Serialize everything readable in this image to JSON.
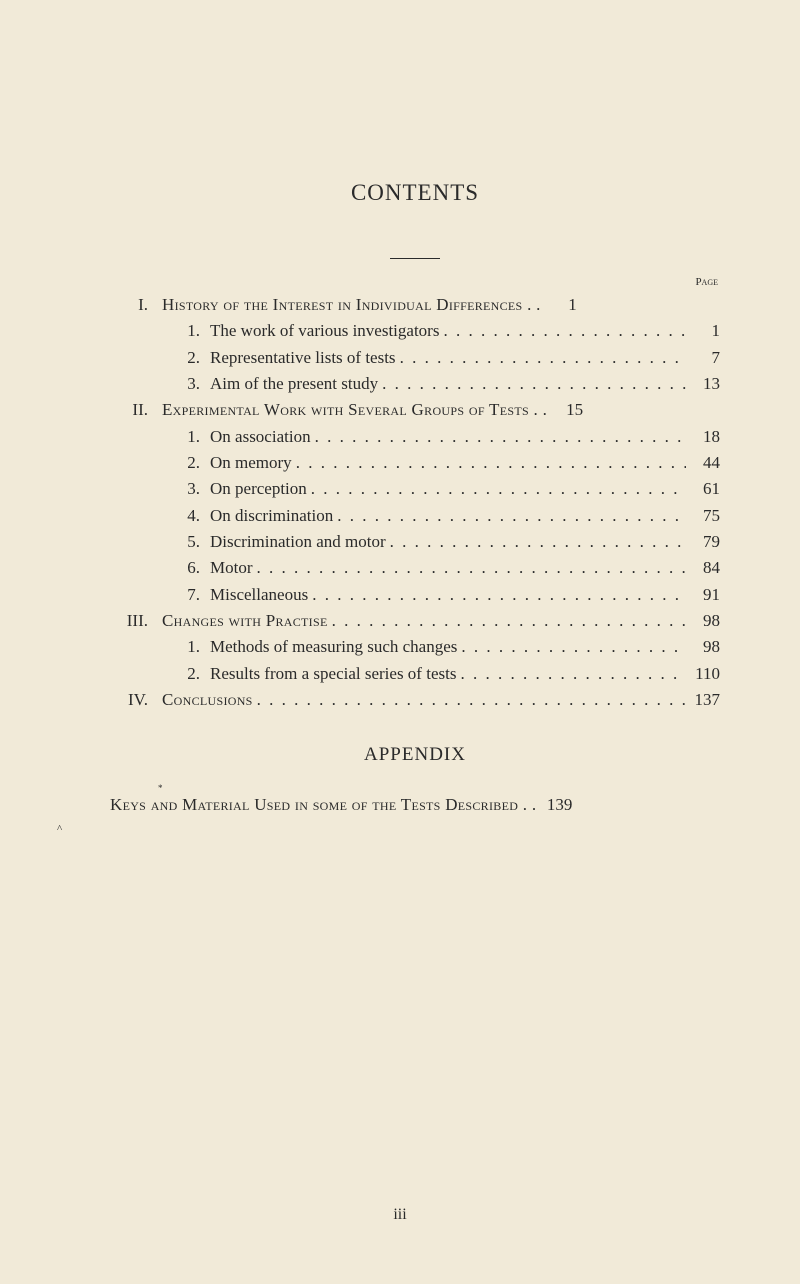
{
  "title": "CONTENTS",
  "page_label": "Page",
  "sections": [
    {
      "roman": "I.",
      "title": "History of the Interest in Individual Differences . .",
      "page": "1",
      "subs": [
        {
          "num": "1.",
          "text": "The work of various investigators",
          "page": "1"
        },
        {
          "num": "2.",
          "text": "Representative lists of tests",
          "page": "7"
        },
        {
          "num": "3.",
          "text": "Aim of the present study",
          "page": "13"
        }
      ]
    },
    {
      "roman": "II.",
      "title": "Experimental Work with Several Groups of Tests . .",
      "page": "15",
      "subs": [
        {
          "num": "1.",
          "text": "On association",
          "page": "18"
        },
        {
          "num": "2.",
          "text": "On memory",
          "page": "44"
        },
        {
          "num": "3.",
          "text": "On perception",
          "page": "61"
        },
        {
          "num": "4.",
          "text": "On discrimination",
          "page": "75"
        },
        {
          "num": "5.",
          "text": "Discrimination and motor",
          "page": "79"
        },
        {
          "num": "6.",
          "text": "Motor",
          "page": "84"
        },
        {
          "num": "7.",
          "text": "Miscellaneous",
          "page": "91"
        }
      ]
    },
    {
      "roman": "III.",
      "title": "Changes with Practise",
      "page": "98",
      "subs": [
        {
          "num": "1.",
          "text": "Methods of measuring such changes",
          "page": "98"
        },
        {
          "num": "2.",
          "text": "Results from a special series of tests",
          "page": "110"
        }
      ]
    },
    {
      "roman": "IV.",
      "title": "Conclusions",
      "page": "137",
      "subs": []
    }
  ],
  "appendix_title": "APPENDIX",
  "appendix_entry": {
    "text": "Keys and Material Used in some of the Tests Described . .",
    "page": "139"
  },
  "footer": "iii",
  "leader": ". . . . . . . . . . . . . . . . . . . . . . . . . . . . . . . . . . . . . . . . . . . . . . . . . . . . . . . . . . . . . . . . . . . .",
  "marker": "*",
  "caret": "^",
  "colors": {
    "background": "#f1ead8",
    "text": "#2a2a2a"
  },
  "typography": {
    "title_fontsize": 23,
    "body_fontsize": 17,
    "page_label_fontsize": 11,
    "appendix_title_fontsize": 19
  }
}
